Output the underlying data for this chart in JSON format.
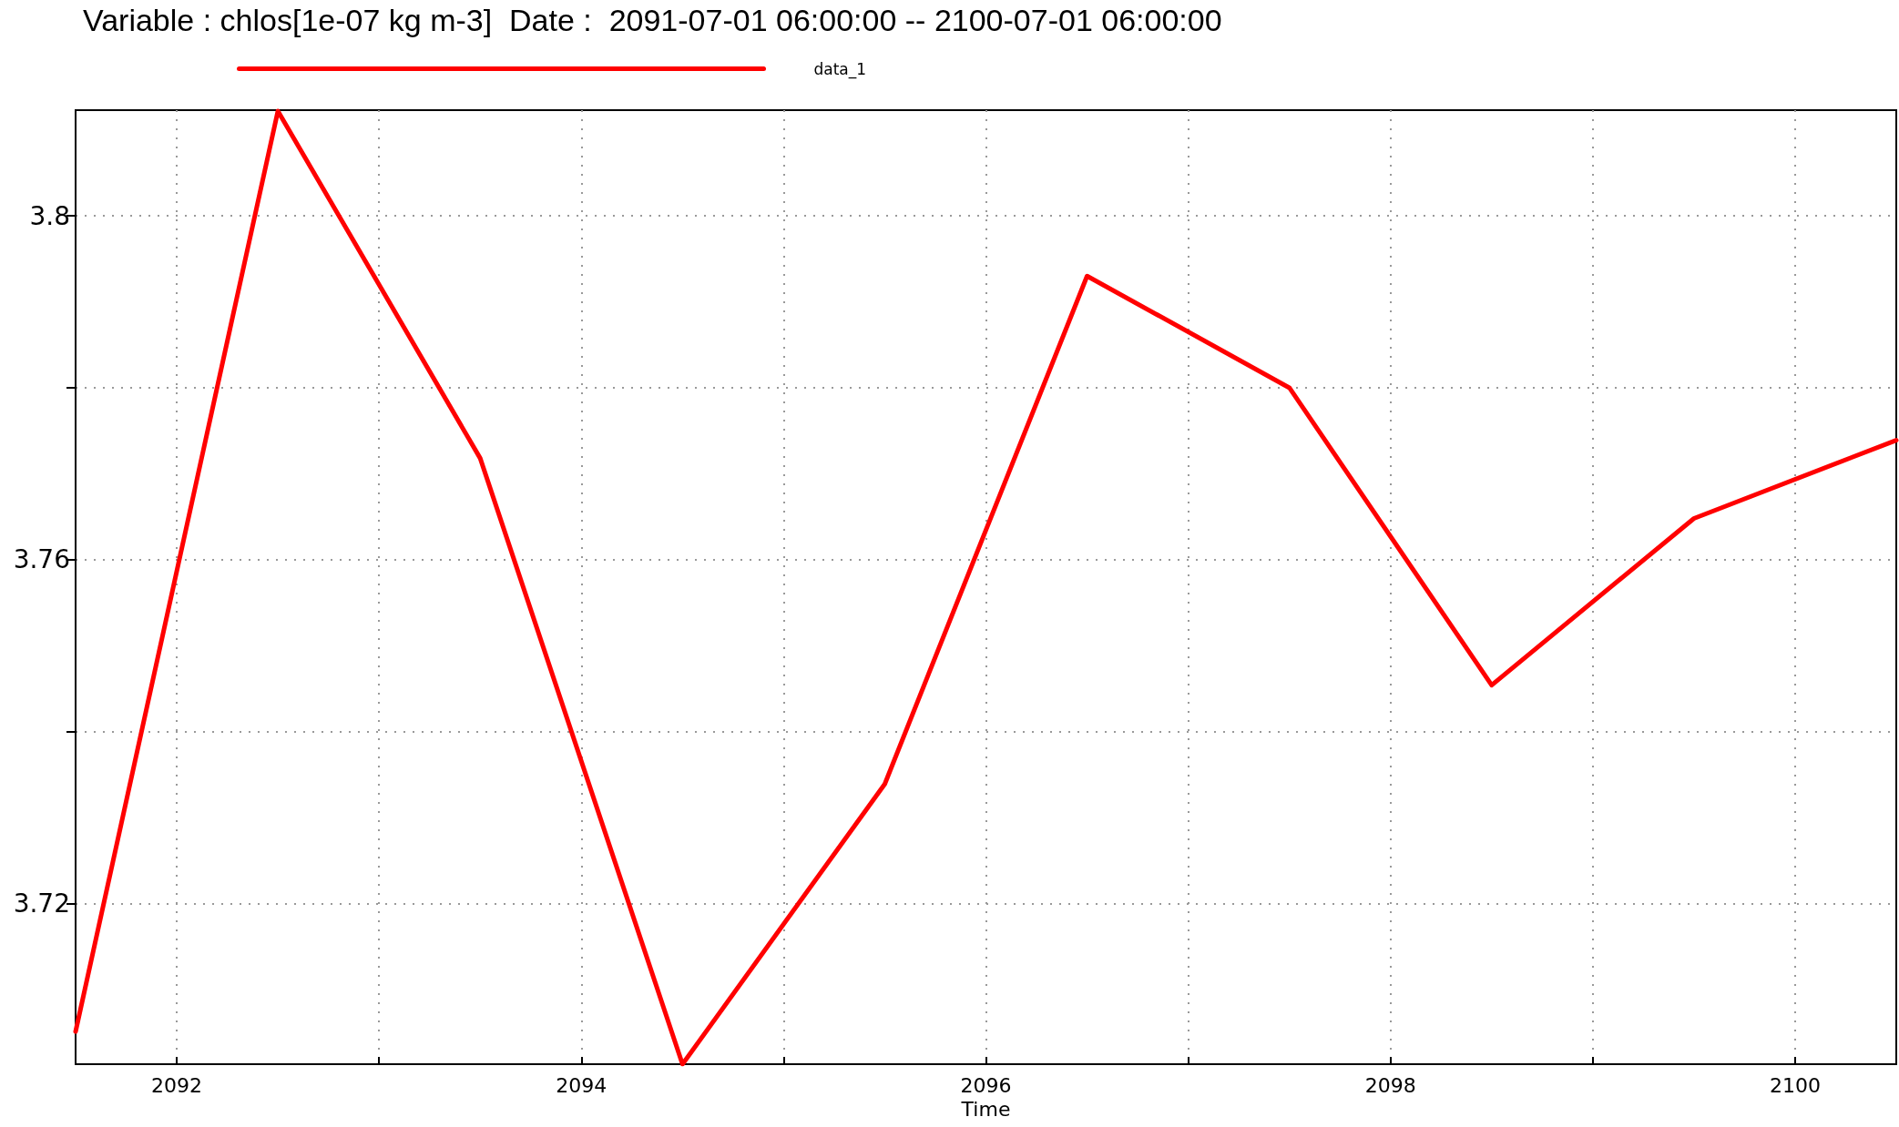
{
  "chart_data": {
    "type": "line",
    "title": "Variable : chlos[1e-07 kg m-3]  Date :  2091-07-01 06:00:00 -- 2100-07-01 06:00:00",
    "xlabel": "Time",
    "x": [
      2091.5,
      2092.5,
      2093.5,
      2094.5,
      2095.5,
      2096.5,
      2097.5,
      2098.5,
      2099.5,
      2100.5
    ],
    "series": [
      {
        "name": "data_1",
        "color": "#ff0000",
        "values": [
          3.7051,
          3.8122,
          3.7718,
          3.7013,
          3.7339,
          3.793,
          3.78,
          3.7454,
          3.7648,
          3.7739
        ]
      }
    ],
    "xlim": [
      2091.5,
      2100.5
    ],
    "ylim": [
      3.7013,
      3.8123
    ],
    "xticks": [
      2092,
      {
        "value": 2093,
        "label": null
      },
      2094,
      {
        "value": 2095,
        "label": null
      },
      2096,
      {
        "value": 2097,
        "label": null
      },
      2098,
      {
        "value": 2099,
        "label": null
      },
      2100
    ],
    "yticks": [
      3.72,
      {
        "value": 3.74,
        "label": null
      },
      3.76,
      {
        "value": 3.78,
        "label": null
      },
      3.8
    ],
    "grid": true,
    "legend": "top left",
    "marker": "none",
    "line_style": "solid"
  }
}
